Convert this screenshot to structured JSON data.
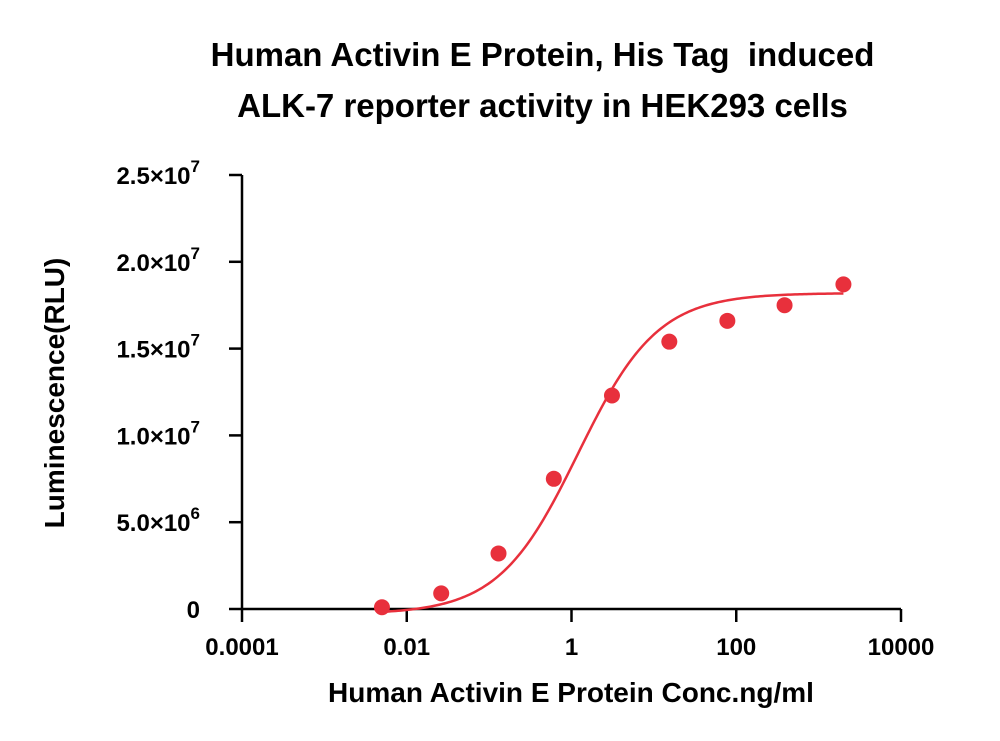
{
  "chart_data": {
    "type": "scatter",
    "title_lines": [
      "Human Activin E Protein, His Tag  induced",
      "ALK-7 reporter activity in HEK293 cells"
    ],
    "xlabel": "Human Activin E Protein Conc.ng/ml",
    "ylabel": "Luminescence(RLU)",
    "x_scale": "log",
    "xlim": [
      0.0001,
      10000
    ],
    "ylim": [
      0,
      25000000
    ],
    "x_ticks": [
      {
        "value": 0.0001,
        "label": "0.0001"
      },
      {
        "value": 0.01,
        "label": "0.01"
      },
      {
        "value": 1,
        "label": "1"
      },
      {
        "value": 100,
        "label": "100"
      },
      {
        "value": 10000,
        "label": "10000"
      }
    ],
    "y_ticks": [
      {
        "value": 0,
        "label": "0"
      },
      {
        "value": 5000000,
        "label": "5.0×10",
        "exp": "6"
      },
      {
        "value": 10000000,
        "label": "1.0×10",
        "exp": "7"
      },
      {
        "value": 15000000,
        "label": "1.5×10",
        "exp": "7"
      },
      {
        "value": 20000000,
        "label": "2.0×10",
        "exp": "7"
      },
      {
        "value": 25000000,
        "label": "2.5×10",
        "exp": "7"
      }
    ],
    "grid": false,
    "legend": "none",
    "series": [
      {
        "points": [
          {
            "x": 0.005,
            "y": 100000
          },
          {
            "x": 0.0262,
            "y": 900000
          },
          {
            "x": 0.13,
            "y": 3200000
          },
          {
            "x": 0.61,
            "y": 7500000
          },
          {
            "x": 3.1,
            "y": 12300000
          },
          {
            "x": 15.4,
            "y": 15400000
          },
          {
            "x": 78,
            "y": 16600000
          },
          {
            "x": 386,
            "y": 17500000
          },
          {
            "x": 2000,
            "y": 18700000
          }
        ],
        "fit": {
          "type": "4PL",
          "bottom": -300000,
          "top": 18200000,
          "ec50": 1.2,
          "hill": 0.9
        },
        "color": "#e8303c"
      }
    ]
  }
}
